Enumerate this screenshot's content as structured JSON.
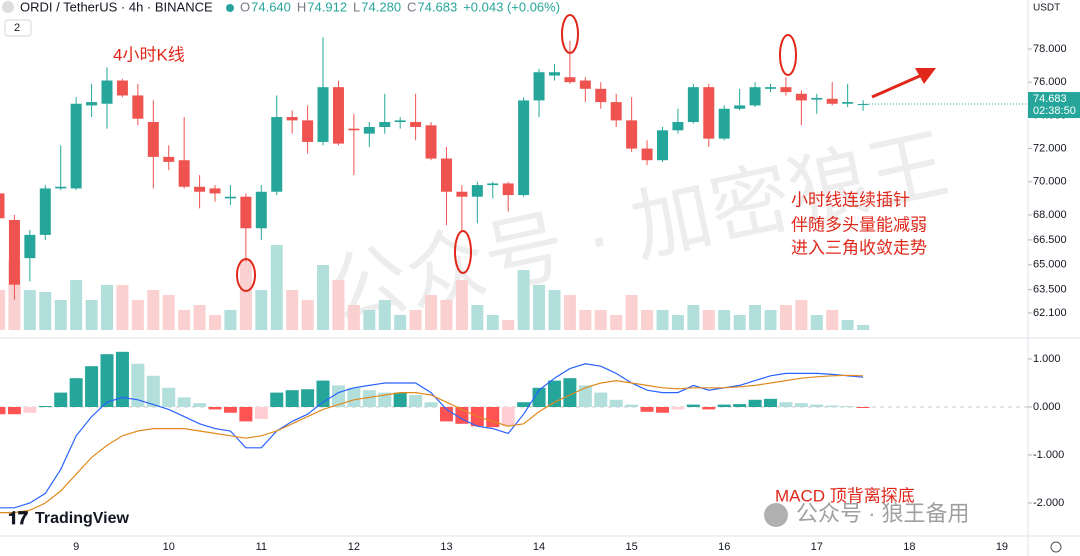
{
  "header": {
    "symbol": "ORDI / TetherUS · 4h · BINANCE",
    "fields": [
      {
        "label": "O",
        "value": "74.640"
      },
      {
        "label": "H",
        "value": "74.912"
      },
      {
        "label": "L",
        "value": "74.280"
      },
      {
        "label": "C",
        "value": "74.683"
      }
    ],
    "change": "+0.043 (+0.06%)",
    "indicators": "2"
  },
  "annotations": [
    "4小时K线",
    "小时线连续插针",
    "伴随多头量能减弱",
    "进入三角收敛走势",
    "MACD 顶背离探底"
  ],
  "watermarks": [
    "公众号 · 加密狼王",
    "公众号 · 狼王备用"
  ],
  "brand": "TradingView",
  "chart_data": [
    {
      "type": "candlestick",
      "categories": [
        null,
        null,
        null,
        null,
        null,
        "9",
        null,
        null,
        null,
        null,
        null,
        "10",
        null,
        null,
        null,
        null,
        null,
        "11",
        null,
        null,
        null,
        null,
        null,
        "12",
        null,
        null,
        null,
        null,
        null,
        "13",
        null,
        null,
        null,
        null,
        null,
        "14",
        null,
        null,
        null,
        null,
        null,
        "15",
        null,
        null,
        null,
        null,
        null,
        "16",
        null,
        null,
        null,
        null,
        null,
        "17",
        null,
        null,
        null,
        null,
        null,
        "18",
        null,
        null,
        null,
        null,
        null,
        "19"
      ],
      "open": [
        69.3,
        67.7,
        65.4,
        66.8,
        69.6,
        69.6,
        74.6,
        74.7,
        76.1,
        75.2,
        73.6,
        71.5,
        71.3,
        69.7,
        69.6,
        69.0,
        69.1,
        67.2,
        69.4,
        73.9,
        73.7,
        72.4,
        75.7,
        73.2,
        72.9,
        73.3,
        73.6,
        73.6,
        73.4,
        71.4,
        69.4,
        69.1,
        69.8,
        69.9,
        69.2,
        74.9,
        76.4,
        76.3,
        76.1,
        75.6,
        74.8,
        73.7,
        72.0,
        71.3,
        73.1,
        73.6,
        75.7,
        72.6,
        74.4,
        74.6,
        75.6,
        75.7,
        75.3,
        74.95,
        75.0,
        74.7,
        74.64,
        null,
        null,
        null,
        null,
        null,
        null,
        null,
        null,
        null
      ],
      "high": [
        69.6,
        68.0,
        67.1,
        69.8,
        72.2,
        75.1,
        75.9,
        76.9,
        76.2,
        75.9,
        74.9,
        72.2,
        73.9,
        70.4,
        69.8,
        69.8,
        69.3,
        69.8,
        75.2,
        74.3,
        74.6,
        78.7,
        76.1,
        74.1,
        73.6,
        75.3,
        73.9,
        75.3,
        73.6,
        72.1,
        69.8,
        70.0,
        70.0,
        70.0,
        75.1,
        76.8,
        77.1,
        78.5,
        76.3,
        76.0,
        75.3,
        75.1,
        72.5,
        73.3,
        74.4,
        75.9,
        75.9,
        74.6,
        75.6,
        76.0,
        75.9,
        76.3,
        75.5,
        75.3,
        76.0,
        75.9,
        74.912,
        null,
        null,
        null,
        null,
        null,
        null,
        null,
        null,
        null
      ],
      "low": [
        64.5,
        62.9,
        64.0,
        66.5,
        69.5,
        69.5,
        73.9,
        73.2,
        75.1,
        73.4,
        69.6,
        70.7,
        69.6,
        68.4,
        68.8,
        68.6,
        65.2,
        66.5,
        69.2,
        72.9,
        71.7,
        72.2,
        72.2,
        70.4,
        72.1,
        72.9,
        73.2,
        72.5,
        71.3,
        67.4,
        67.0,
        67.5,
        69.0,
        68.2,
        69.1,
        73.9,
        76.1,
        75.9,
        74.8,
        74.4,
        73.3,
        71.8,
        71.0,
        71.2,
        72.9,
        73.5,
        72.1,
        72.5,
        74.3,
        74.5,
        75.4,
        75.2,
        73.4,
        74.1,
        74.6,
        74.5,
        74.28,
        null,
        null,
        null,
        null,
        null,
        null,
        null,
        null,
        null
      ],
      "close": [
        67.8,
        63.8,
        66.8,
        69.6,
        69.7,
        74.7,
        74.8,
        76.1,
        75.2,
        73.8,
        71.5,
        71.2,
        69.7,
        69.4,
        69.3,
        69.1,
        67.2,
        69.4,
        73.9,
        73.7,
        72.4,
        75.7,
        72.3,
        73.1,
        73.3,
        73.6,
        73.7,
        73.3,
        71.4,
        69.4,
        69.1,
        69.8,
        69.9,
        69.2,
        74.9,
        76.6,
        76.6,
        76.0,
        75.6,
        74.8,
        73.7,
        72.0,
        71.3,
        73.1,
        73.6,
        75.7,
        72.6,
        74.4,
        74.6,
        75.7,
        75.7,
        75.4,
        74.9,
        75.05,
        74.7,
        74.8,
        74.683,
        null,
        null,
        null,
        null,
        null,
        null,
        null,
        null,
        null
      ],
      "volume": [
        40,
        70,
        40,
        38,
        30,
        50,
        30,
        45,
        45,
        30,
        40,
        35,
        20,
        25,
        15,
        20,
        70,
        40,
        85,
        40,
        30,
        65,
        50,
        25,
        20,
        30,
        15,
        20,
        35,
        30,
        50,
        25,
        15,
        10,
        60,
        45,
        40,
        35,
        20,
        20,
        15,
        35,
        20,
        20,
        15,
        25,
        20,
        20,
        15,
        25,
        20,
        25,
        30,
        15,
        20,
        10,
        5,
        null,
        null,
        null,
        null,
        null,
        null,
        null,
        null,
        null
      ],
      "up_color": "#26a69a",
      "down_color": "#ef5350",
      "volume_up_color": "#b2dfdb",
      "volume_down_color": "#fbd0d0",
      "ylim": [
        60.59,
        80.95
      ],
      "yticks": [
        {
          "value": 62.1,
          "label": "62.100"
        },
        {
          "value": 63.5,
          "label": "63.500"
        },
        {
          "value": 65,
          "label": "65.000"
        },
        {
          "value": 66.5,
          "label": "66.500"
        },
        {
          "value": 68,
          "label": "68.000"
        },
        {
          "value": 70,
          "label": "70.000"
        },
        {
          "value": 72,
          "label": "72.000"
        },
        {
          "value": 74,
          "label": "74.000"
        },
        {
          "value": 76,
          "label": "76.000"
        },
        {
          "value": 78,
          "label": "78.000"
        }
      ],
      "axis_unit": "USDT",
      "countdown": "02:38:50",
      "grid": false
    },
    {
      "type": "macd",
      "histogram": [
        -0.15,
        -0.15,
        -0.12,
        0.02,
        0.3,
        0.6,
        0.85,
        1.1,
        1.15,
        0.9,
        0.65,
        0.4,
        0.2,
        0.08,
        -0.05,
        -0.12,
        -0.3,
        -0.25,
        0.3,
        0.35,
        0.37,
        0.55,
        0.45,
        0.4,
        0.35,
        0.3,
        0.3,
        0.25,
        0.1,
        -0.3,
        -0.35,
        -0.4,
        -0.42,
        -0.4,
        0.1,
        0.4,
        0.55,
        0.6,
        0.45,
        0.3,
        0.15,
        0.05,
        -0.1,
        -0.12,
        -0.05,
        0.05,
        -0.05,
        0.05,
        0.06,
        0.15,
        0.17,
        0.1,
        0.08,
        0.05,
        0.03,
        0.02,
        -0.01,
        null,
        null,
        null,
        null,
        null,
        null,
        null,
        null,
        null
      ],
      "histogram_colors": {
        "up_rising": "#26a69a",
        "up_falling": "#b2dfdb",
        "down_falling": "#ff5252",
        "down_rising": "#ffcdd2"
      },
      "series": [
        {
          "color": "#2962ff",
          "values": [
            -2.1,
            -2.1,
            -2.0,
            -1.8,
            -1.3,
            -0.6,
            -0.2,
            0.1,
            0.2,
            0.15,
            0.05,
            -0.05,
            -0.2,
            -0.35,
            -0.45,
            -0.5,
            -0.85,
            -0.85,
            -0.5,
            -0.3,
            -0.15,
            0.1,
            0.3,
            0.4,
            0.45,
            0.5,
            0.5,
            0.5,
            0.3,
            -0.05,
            -0.25,
            -0.4,
            -0.45,
            -0.55,
            -0.15,
            0.35,
            0.6,
            0.8,
            0.9,
            0.85,
            0.7,
            0.5,
            0.35,
            0.3,
            0.3,
            0.45,
            0.35,
            0.4,
            0.45,
            0.55,
            0.65,
            0.7,
            0.7,
            0.7,
            0.68,
            0.65,
            0.62,
            null,
            null,
            null,
            null,
            null,
            null,
            null,
            null,
            null
          ]
        },
        {
          "color": "#e08a1e",
          "values": [
            -2.2,
            -2.2,
            -2.15,
            -2.0,
            -1.75,
            -1.4,
            -1.05,
            -0.8,
            -0.6,
            -0.5,
            -0.45,
            -0.45,
            -0.45,
            -0.5,
            -0.55,
            -0.6,
            -0.65,
            -0.6,
            -0.5,
            -0.35,
            -0.2,
            -0.05,
            0.05,
            0.15,
            0.2,
            0.25,
            0.3,
            0.3,
            0.25,
            0.1,
            -0.05,
            -0.2,
            -0.3,
            -0.4,
            -0.35,
            -0.1,
            0.1,
            0.25,
            0.4,
            0.5,
            0.55,
            0.5,
            0.45,
            0.4,
            0.38,
            0.4,
            0.4,
            0.4,
            0.42,
            0.45,
            0.5,
            0.55,
            0.6,
            0.63,
            0.65,
            0.66,
            0.65,
            null,
            null,
            null,
            null,
            null,
            null,
            null,
            null,
            null
          ]
        }
      ],
      "ylim": [
        -2.667,
        1.396
      ],
      "yticks": [
        {
          "value": 1,
          "label": "1.000"
        },
        {
          "value": 0,
          "label": "0.000"
        },
        {
          "value": -1,
          "label": "-1.000"
        },
        {
          "value": -2,
          "label": "-2.000"
        }
      ]
    }
  ]
}
